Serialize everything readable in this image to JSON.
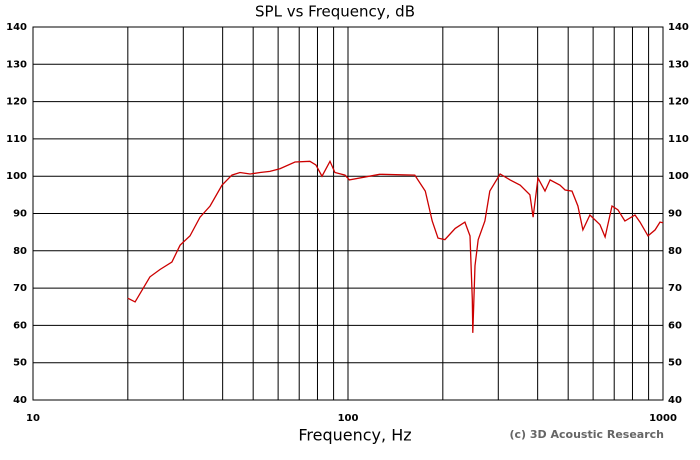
{
  "chart_data": {
    "type": "line",
    "title": "SPL vs Frequency, dB",
    "x_label": "Frequency, Hz",
    "annotation": "(c) 3D Acoustic Research",
    "x_scale": "log",
    "grid": true,
    "xlim": [
      10,
      1000
    ],
    "xticks": [
      10,
      100,
      1000
    ],
    "x_minor_ticks": [
      20,
      30,
      40,
      50,
      60,
      70,
      80,
      90,
      200,
      300,
      400,
      500,
      600,
      700,
      800,
      900
    ],
    "ylim": [
      40,
      140
    ],
    "yticks": [
      40,
      50,
      60,
      70,
      80,
      90,
      100,
      110,
      120,
      130,
      140
    ],
    "series": [
      {
        "color": "#cc0000",
        "x": [
          20,
          21.1,
          23.5,
          25.3,
          27.6,
          29.3,
          31.5,
          33.9,
          36.5,
          39.8,
          42.8,
          45.4,
          48.9,
          52.6,
          56.5,
          60.8,
          67.9,
          75.7,
          79.1,
          82.7,
          87.7,
          90.9,
          97.8,
          101,
          126,
          163,
          176,
          185,
          193,
          203,
          219,
          235,
          244,
          248,
          249,
          253,
          259,
          272,
          282,
          304,
          327,
          352,
          378,
          387,
          401,
          422,
          438,
          471,
          489,
          514,
          537,
          557,
          586,
          631,
          655,
          689,
          719,
          757,
          815,
          845,
          896,
          944,
          978,
          1000
        ],
        "values": [
          67.3,
          66.3,
          73,
          75,
          77,
          81.5,
          84,
          89,
          92,
          97.6,
          100.3,
          101,
          100.6,
          101,
          101.3,
          102,
          103.8,
          104,
          103,
          100,
          104,
          101,
          100.3,
          99,
          100.5,
          100.3,
          96,
          88,
          83.4,
          83,
          86,
          87.7,
          84,
          67,
          58,
          76,
          83,
          88,
          96,
          100.6,
          99,
          97.6,
          95,
          89,
          99.5,
          96,
          99,
          97.6,
          96.3,
          96,
          92,
          85.6,
          89.6,
          87,
          83.7,
          92,
          91,
          88,
          89.6,
          87.7,
          84,
          85.6,
          87.7,
          87.5
        ]
      }
    ]
  }
}
